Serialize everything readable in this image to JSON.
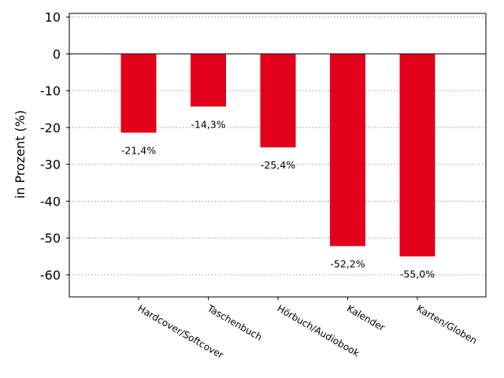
{
  "chart_data": {
    "type": "bar",
    "categories": [
      "Hardcover/Softcover",
      "Taschenbuch",
      "Hörbuch/Audiobook",
      "Kalender",
      "Karten/Globen"
    ],
    "values": [
      -21.4,
      -14.3,
      -25.4,
      -52.2,
      -55.0
    ],
    "data_labels": [
      "-21,4%",
      "-14,3%",
      "-25,4%",
      "-52,2%",
      "-55,0%"
    ],
    "title": "",
    "xlabel": "",
    "ylabel": "in Prozent (%)",
    "ylim": [
      -66,
      11
    ],
    "yticks": [
      10,
      0,
      -10,
      -20,
      -30,
      -40,
      -50,
      -60
    ],
    "grid": "horizontal dotted",
    "bar_color": "#e2001a",
    "legend": "none"
  }
}
